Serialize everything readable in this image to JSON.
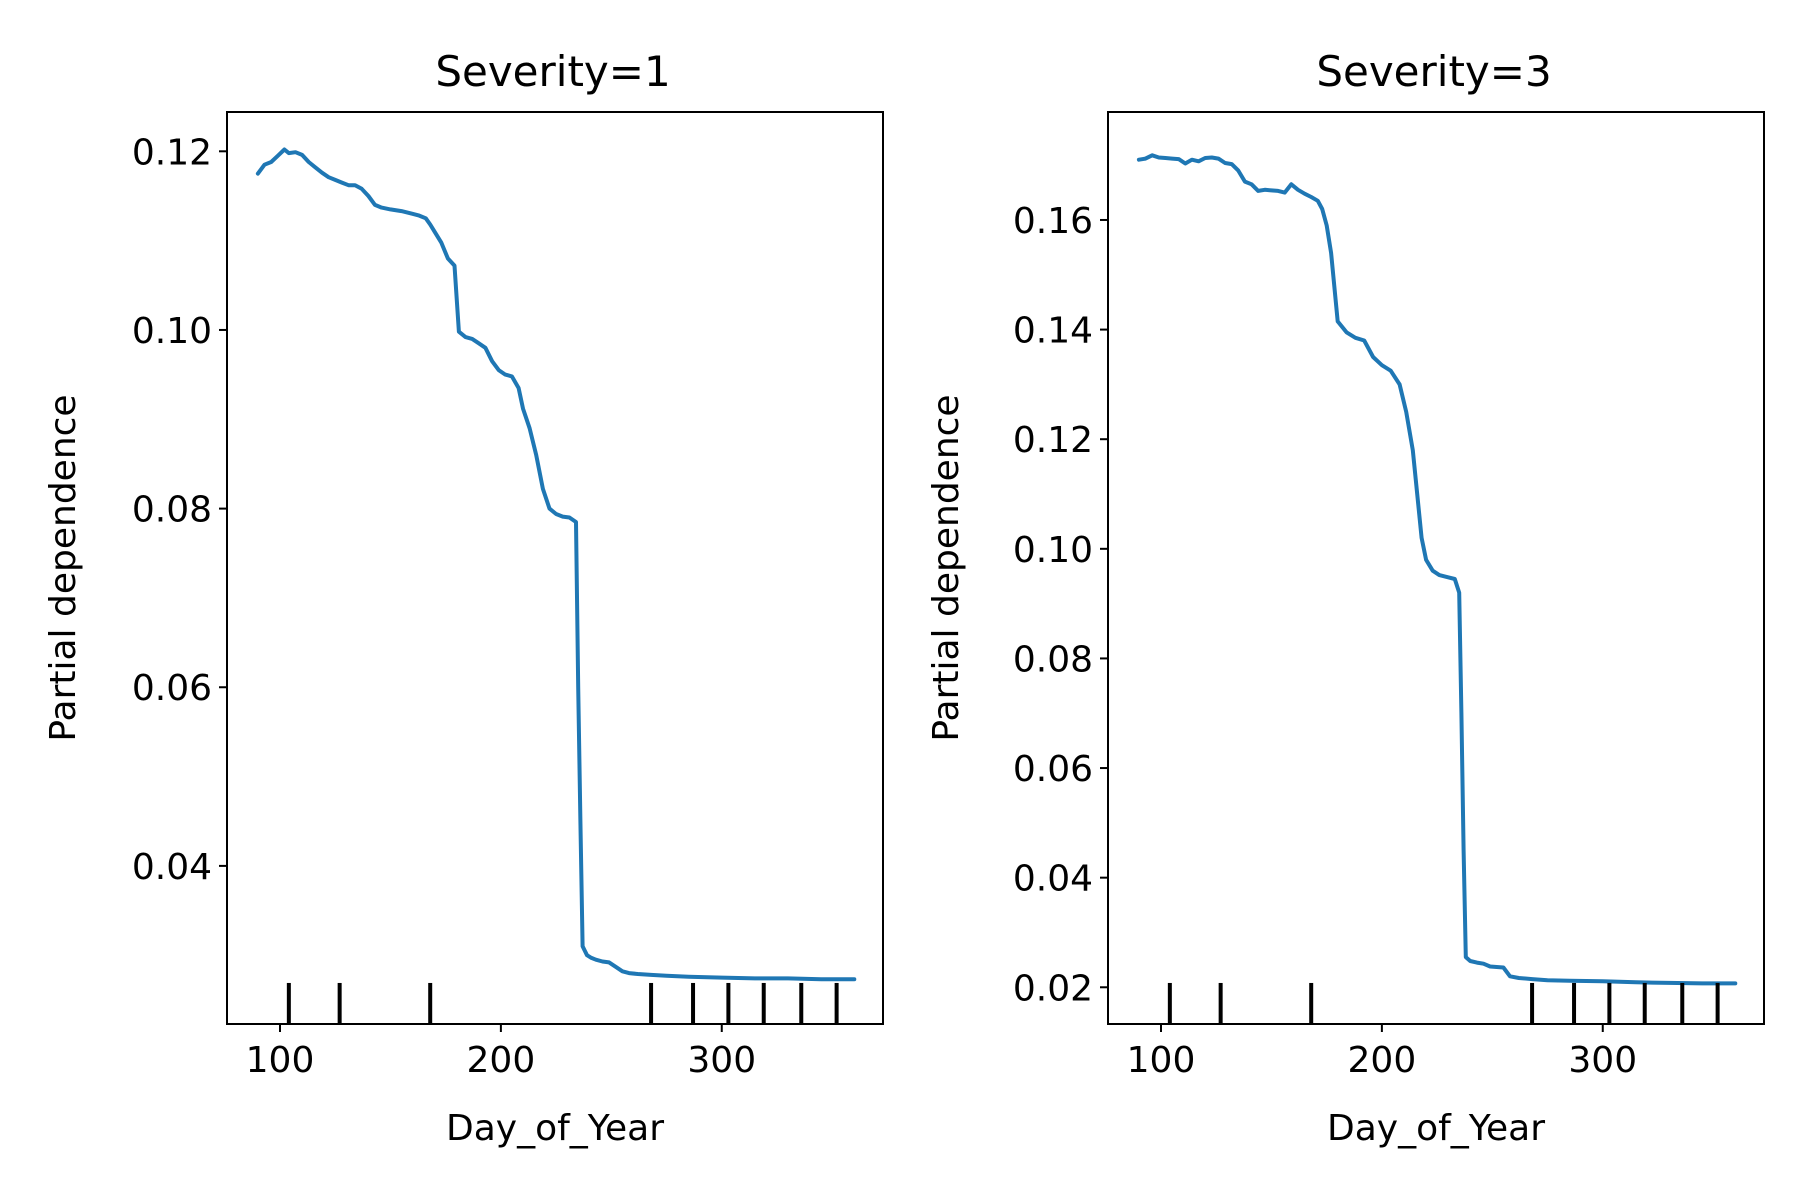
{
  "chart_data": [
    {
      "type": "line",
      "title": "Severity=1",
      "xlabel": "Day_of_Year",
      "ylabel": "Partial dependence",
      "xlim": [
        76,
        373
      ],
      "ylim": [
        0.0223,
        0.1244
      ],
      "xticks": [
        100,
        200,
        300
      ],
      "xtick_labels": [
        "100",
        "200",
        "300"
      ],
      "yticks": [
        0.04,
        0.06,
        0.08,
        0.1,
        0.12
      ],
      "ytick_labels": [
        "0.04",
        "0.06",
        "0.08",
        "0.10",
        "0.12"
      ],
      "grid": false,
      "legend": null,
      "line_color": "#1f77b4",
      "rug_color": "#000000",
      "deciles": [
        104,
        127,
        168,
        268,
        287,
        303,
        319,
        336,
        352
      ],
      "series": [
        {
          "x": [
            90,
            93,
            96,
            99,
            102,
            104,
            107,
            110,
            113,
            116,
            119,
            122,
            125,
            128,
            131,
            134,
            137,
            140,
            143,
            146,
            150,
            155,
            160,
            163,
            166,
            168,
            170,
            173,
            176,
            179,
            181,
            184,
            187,
            190,
            193,
            196,
            199,
            202,
            205,
            208,
            210,
            213,
            216,
            219,
            222,
            225,
            228,
            231,
            234,
            235,
            236,
            237,
            238,
            239,
            241,
            243,
            246,
            249,
            252,
            255,
            258,
            262,
            268,
            275,
            285,
            300,
            315,
            330,
            345,
            360
          ],
          "y": [
            0.1175,
            0.1185,
            0.1188,
            0.1195,
            0.1202,
            0.1198,
            0.1199,
            0.1196,
            0.1188,
            0.1182,
            0.1176,
            0.1171,
            0.1168,
            0.1165,
            0.1162,
            0.1162,
            0.1158,
            0.115,
            0.114,
            0.1137,
            0.1135,
            0.1133,
            0.113,
            0.1128,
            0.1125,
            0.1118,
            0.111,
            0.1098,
            0.108,
            0.1072,
            0.0998,
            0.0992,
            0.099,
            0.0985,
            0.098,
            0.0965,
            0.0955,
            0.095,
            0.0948,
            0.0935,
            0.0912,
            0.089,
            0.086,
            0.0822,
            0.08,
            0.0794,
            0.0791,
            0.079,
            0.0785,
            0.06,
            0.045,
            0.031,
            0.0305,
            0.03,
            0.0297,
            0.0295,
            0.0293,
            0.0292,
            0.0287,
            0.0282,
            0.028,
            0.0279,
            0.0278,
            0.0277,
            0.0276,
            0.0275,
            0.0274,
            0.0274,
            0.0273,
            0.0273
          ]
        }
      ]
    },
    {
      "type": "line",
      "title": "Severity=3",
      "xlabel": "Day_of_Year",
      "ylabel": "Partial dependence",
      "xlim": [
        76,
        373
      ],
      "ylim": [
        0.0133,
        0.1797
      ],
      "xticks": [
        100,
        200,
        300
      ],
      "xtick_labels": [
        "100",
        "200",
        "300"
      ],
      "yticks": [
        0.02,
        0.04,
        0.06,
        0.08,
        0.1,
        0.12,
        0.14,
        0.16
      ],
      "ytick_labels": [
        "0.02",
        "0.04",
        "0.06",
        "0.08",
        "0.10",
        "0.12",
        "0.14",
        "0.16"
      ],
      "grid": false,
      "legend": null,
      "line_color": "#1f77b4",
      "rug_color": "#000000",
      "deciles": [
        104,
        127,
        168,
        268,
        287,
        303,
        319,
        336,
        352
      ],
      "series": [
        {
          "x": [
            90,
            93,
            96,
            99,
            102,
            105,
            108,
            111,
            114,
            117,
            120,
            123,
            126,
            129,
            132,
            135,
            138,
            141,
            144,
            147,
            150,
            153,
            156,
            159,
            162,
            165,
            168,
            171,
            173,
            175,
            177,
            180,
            184,
            188,
            192,
            196,
            200,
            204,
            208,
            211,
            214,
            216,
            218,
            220,
            223,
            226,
            230,
            233,
            235,
            236,
            237,
            238,
            240,
            243,
            246,
            249,
            252,
            255,
            258,
            262,
            268,
            275,
            285,
            300,
            315,
            330,
            345,
            360
          ],
          "y": [
            0.171,
            0.1712,
            0.1718,
            0.1714,
            0.1713,
            0.1712,
            0.1711,
            0.1703,
            0.171,
            0.1707,
            0.1713,
            0.1714,
            0.1712,
            0.1704,
            0.1702,
            0.169,
            0.167,
            0.1665,
            0.1653,
            0.1655,
            0.1654,
            0.1653,
            0.165,
            0.1665,
            0.1655,
            0.1648,
            0.1642,
            0.1635,
            0.162,
            0.159,
            0.154,
            0.1415,
            0.1395,
            0.1385,
            0.138,
            0.135,
            0.1335,
            0.1325,
            0.13,
            0.125,
            0.118,
            0.11,
            0.102,
            0.098,
            0.096,
            0.0952,
            0.0948,
            0.0945,
            0.092,
            0.07,
            0.045,
            0.0255,
            0.0248,
            0.0245,
            0.0243,
            0.0238,
            0.0237,
            0.0236,
            0.022,
            0.0217,
            0.0215,
            0.0213,
            0.0212,
            0.0211,
            0.0209,
            0.0208,
            0.0207,
            0.0207
          ]
        }
      ]
    }
  ]
}
